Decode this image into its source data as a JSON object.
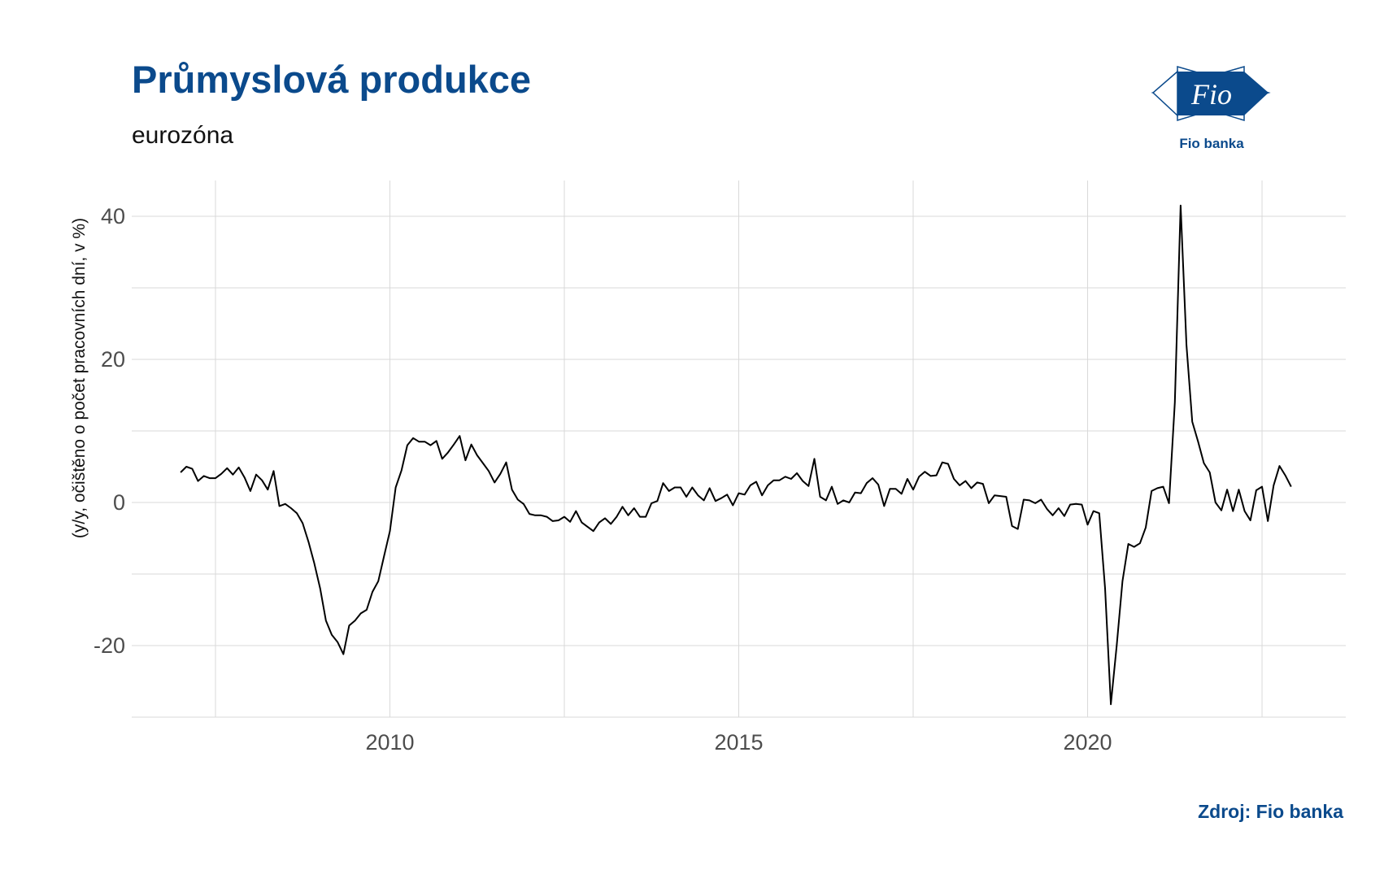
{
  "header": {
    "title": "Průmyslová produkce",
    "subtitle": "eurozóna"
  },
  "logo": {
    "text": "Fio",
    "caption": "Fio banka",
    "color": "#0b4a8c"
  },
  "footer": {
    "source": "Zdroj: Fio banka"
  },
  "chart_data": {
    "type": "line",
    "title": "Průmyslová produkce",
    "subtitle": "eurozóna",
    "xlabel": "",
    "ylabel": "(y/y, očištěno o počet pracovních dní, v %)",
    "x_ticks": [
      2010,
      2015,
      2020
    ],
    "y_ticks": [
      -20,
      0,
      20,
      40
    ],
    "xlim": [
      2006.3,
      2023.7
    ],
    "ylim": [
      -30,
      45
    ],
    "grid": true,
    "line_color": "#000000",
    "series": [
      {
        "x_start": "2007-01",
        "frequency": "monthly",
        "values": [
          4.2,
          5.0,
          4.7,
          3.0,
          3.7,
          3.4,
          3.4,
          4.0,
          4.8,
          3.9,
          4.9,
          3.5,
          1.6,
          3.9,
          3.1,
          1.8,
          4.4,
          -0.5,
          -0.2,
          -0.8,
          -1.5,
          -2.9,
          -5.5,
          -8.5,
          -12.0,
          -16.5,
          -18.5,
          -19.5,
          -21.2,
          -17.2,
          -16.5,
          -15.5,
          -15.0,
          -12.5,
          -11.0,
          -7.5,
          -4.0,
          2.1,
          4.5,
          8.0,
          9.0,
          8.5,
          8.5,
          8.0,
          8.6,
          6.1,
          7.0,
          8.1,
          9.3,
          5.9,
          8.1,
          6.6,
          5.5,
          4.4,
          2.8,
          4.0,
          5.6,
          1.8,
          0.4,
          -0.2,
          -1.6,
          -1.8,
          -1.8,
          -2.0,
          -2.6,
          -2.5,
          -2.0,
          -2.7,
          -1.2,
          -2.8,
          -3.4,
          -4.0,
          -2.8,
          -2.2,
          -3.0,
          -2.0,
          -0.6,
          -1.8,
          -0.8,
          -2.0,
          -2.0,
          -0.1,
          0.2,
          2.7,
          1.6,
          2.1,
          2.1,
          0.8,
          2.1,
          1.0,
          0.3,
          2.0,
          0.2,
          0.6,
          1.1,
          -0.4,
          1.3,
          1.1,
          2.4,
          2.9,
          1.0,
          2.4,
          3.1,
          3.1,
          3.6,
          3.3,
          4.1,
          3.0,
          2.3,
          6.1,
          0.8,
          0.3,
          2.2,
          -0.2,
          0.3,
          0.0,
          1.4,
          1.3,
          2.7,
          3.4,
          2.5,
          -0.5,
          1.9,
          1.9,
          1.2,
          3.3,
          1.8,
          3.6,
          4.3,
          3.7,
          3.8,
          5.6,
          5.4,
          3.3,
          2.4,
          3.0,
          2.0,
          2.8,
          2.6,
          -0.1,
          1.0,
          0.9,
          0.8,
          -3.3,
          -3.7,
          0.4,
          0.3,
          -0.1,
          0.4,
          -0.9,
          -1.8,
          -0.8,
          -1.9,
          -0.3,
          -0.2,
          -0.3,
          -3.1,
          -1.2,
          -1.5,
          -12.0,
          -28.2,
          -20.0,
          -11.0,
          -5.8,
          -6.2,
          -5.7,
          -3.5,
          1.6,
          2.0,
          2.2,
          -0.1,
          14.0,
          41.5,
          22.0,
          11.3,
          8.5,
          5.5,
          4.2,
          0.0,
          -1.1,
          1.8,
          -1.2,
          1.8,
          -1.2,
          -2.5,
          1.7,
          2.2,
          -2.6,
          2.4,
          5.1,
          3.8,
          2.2
        ]
      }
    ]
  }
}
